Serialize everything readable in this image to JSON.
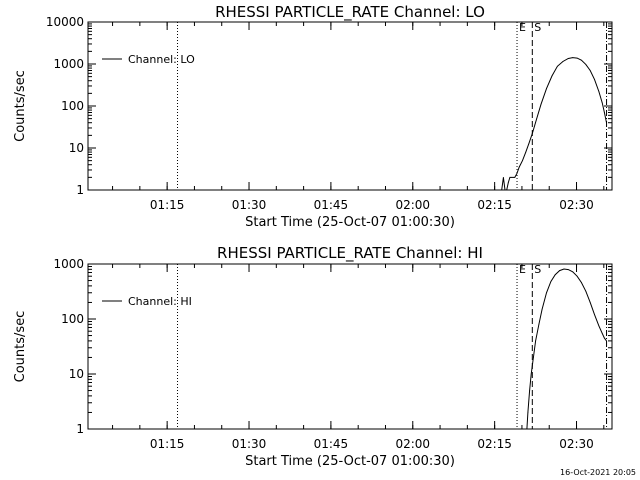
{
  "footer": {
    "timestamp": "16-Oct-2021 20:05"
  },
  "chart_data": [
    {
      "type": "line",
      "title": "RHESSI PARTICLE_RATE Channel: LO",
      "xlabel": "Start Time (25-Oct-07 01:00:30)",
      "ylabel": "Counts/sec",
      "x_unit": "minutes after 01:00:30",
      "xlim": [
        0,
        96
      ],
      "ylim": [
        1,
        10000
      ],
      "yscale": "log",
      "x_ticks": [
        {
          "x": 14.5,
          "label": "01:15"
        },
        {
          "x": 29.5,
          "label": "01:30"
        },
        {
          "x": 44.5,
          "label": "01:45"
        },
        {
          "x": 59.5,
          "label": "02:00"
        },
        {
          "x": 74.5,
          "label": "02:15"
        },
        {
          "x": 89.5,
          "label": "02:30"
        }
      ],
      "y_ticks": [
        {
          "y": 1,
          "label": "1"
        },
        {
          "y": 10,
          "label": "10"
        },
        {
          "y": 100,
          "label": "100"
        },
        {
          "y": 1000,
          "label": "1000"
        },
        {
          "y": 10000,
          "label": "10000"
        }
      ],
      "legend": {
        "position": "top-left",
        "entries": [
          "Channel: LO"
        ]
      },
      "markers": [
        {
          "x": 16.4,
          "style": "dotted",
          "label": ""
        },
        {
          "x": 78.6,
          "style": "dotted",
          "label": "E"
        },
        {
          "x": 81.4,
          "style": "dashed",
          "label": "S"
        },
        {
          "x": 95.0,
          "style": "dashdot",
          "label": ""
        }
      ],
      "series": [
        {
          "name": "Channel: LO",
          "x": [
            75.8,
            76.1,
            76.4,
            76.7,
            77.0,
            77.3,
            77.6,
            77.9,
            78.2,
            78.6,
            79.0,
            79.6,
            80.2,
            80.8,
            81.4,
            82.2,
            83.0,
            84.0,
            85.0,
            86.0,
            87.0,
            88.0,
            88.8,
            89.6,
            90.4,
            91.2,
            92.0,
            92.8,
            93.6,
            94.2,
            94.6,
            95.0
          ],
          "y": [
            1,
            2,
            1,
            1,
            1.5,
            2,
            2,
            2,
            2,
            2.5,
            3.5,
            5,
            8,
            13,
            22,
            50,
            110,
            260,
            520,
            880,
            1150,
            1350,
            1420,
            1380,
            1230,
            980,
            700,
            430,
            220,
            120,
            70,
            40
          ]
        }
      ]
    },
    {
      "type": "line",
      "title": "RHESSI PARTICLE_RATE Channel: HI",
      "xlabel": "Start Time (25-Oct-07 01:00:30)",
      "ylabel": "Counts/sec",
      "x_unit": "minutes after 01:00:30",
      "xlim": [
        0,
        96
      ],
      "ylim": [
        1,
        1000
      ],
      "yscale": "log",
      "x_ticks": [
        {
          "x": 14.5,
          "label": "01:15"
        },
        {
          "x": 29.5,
          "label": "01:30"
        },
        {
          "x": 44.5,
          "label": "01:45"
        },
        {
          "x": 59.5,
          "label": "02:00"
        },
        {
          "x": 74.5,
          "label": "02:15"
        },
        {
          "x": 89.5,
          "label": "02:30"
        }
      ],
      "y_ticks": [
        {
          "y": 1,
          "label": "1"
        },
        {
          "y": 10,
          "label": "10"
        },
        {
          "y": 100,
          "label": "100"
        },
        {
          "y": 1000,
          "label": "1000"
        }
      ],
      "legend": {
        "position": "top-left",
        "entries": [
          "Channel: HI"
        ]
      },
      "markers": [
        {
          "x": 16.4,
          "style": "dotted",
          "label": ""
        },
        {
          "x": 78.6,
          "style": "dotted",
          "label": "E"
        },
        {
          "x": 81.4,
          "style": "dashed",
          "label": "S"
        },
        {
          "x": 95.0,
          "style": "dashdot",
          "label": ""
        }
      ],
      "series": [
        {
          "name": "Channel: HI",
          "x": [
            80.4,
            80.6,
            80.9,
            81.2,
            81.6,
            82.0,
            82.6,
            83.2,
            84.0,
            84.8,
            85.6,
            86.4,
            87.2,
            88.0,
            88.8,
            89.6,
            90.4,
            91.2,
            92.0,
            92.8,
            93.6,
            94.2,
            94.6,
            95.0
          ],
          "y": [
            1,
            2,
            5,
            10,
            20,
            40,
            80,
            150,
            300,
            480,
            640,
            760,
            810,
            790,
            720,
            600,
            460,
            320,
            200,
            120,
            75,
            55,
            45,
            40
          ]
        }
      ]
    }
  ]
}
